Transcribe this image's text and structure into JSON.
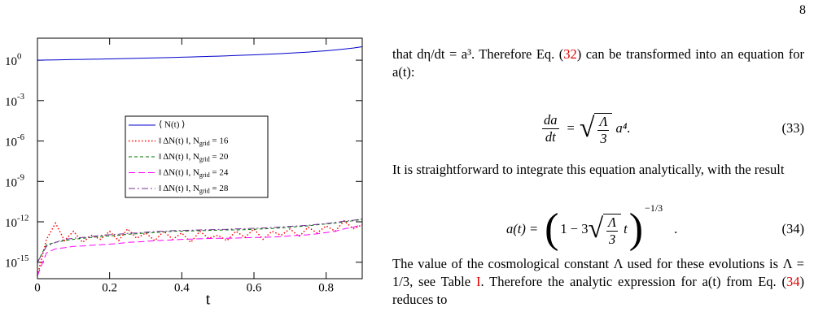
{
  "page_number": "8",
  "chart_data": {
    "type": "line",
    "x_label": "t",
    "x": [
      0,
      0.025,
      0.05,
      0.075,
      0.1,
      0.125,
      0.15,
      0.175,
      0.2,
      0.225,
      0.25,
      0.275,
      0.3,
      0.325,
      0.35,
      0.375,
      0.4,
      0.425,
      0.45,
      0.475,
      0.5,
      0.525,
      0.55,
      0.575,
      0.6,
      0.625,
      0.65,
      0.675,
      0.7,
      0.725,
      0.75,
      0.775,
      0.8,
      0.825,
      0.85,
      0.875,
      0.9
    ],
    "xlim": [
      0,
      0.9
    ],
    "xticks": [
      0,
      0.2,
      0.4,
      0.6,
      0.8
    ],
    "ylim": [
      6e-17,
      43
    ],
    "y_log": true,
    "yticks": [
      {
        "value": 1,
        "label": "10^0"
      },
      {
        "value": 0.001,
        "label": "10^-3"
      },
      {
        "value": 1e-06,
        "label": "10^-6"
      },
      {
        "value": 1e-09,
        "label": "10^-9"
      },
      {
        "value": 1e-12,
        "label": "10^-12"
      },
      {
        "value": 1e-15,
        "label": "10^-15"
      }
    ],
    "legend": "center",
    "series": [
      {
        "name": "⟨ N(t) ⟩",
        "color": "#0000cc",
        "dash": "none",
        "values": [
          1,
          1.026,
          1.053,
          1.081,
          1.111,
          1.143,
          1.176,
          1.212,
          1.25,
          1.29,
          1.333,
          1.379,
          1.429,
          1.481,
          1.538,
          1.6,
          1.667,
          1.739,
          1.818,
          1.905,
          2,
          2.105,
          2.222,
          2.353,
          2.5,
          2.667,
          2.857,
          3.077,
          3.333,
          3.636,
          4,
          4.444,
          5,
          5.714,
          6.667,
          8,
          10
        ]
      },
      {
        "name": "‖ ΔN(t) ‖,  N_grid = 16",
        "color": "#ff0000",
        "dash": "1.5,2.5",
        "values": [
          1e-16,
          5e-14,
          8e-13,
          4e-14,
          2e-13,
          3e-14,
          1e-13,
          5e-14,
          2e-13,
          4e-14,
          3e-13,
          6e-14,
          1.5e-13,
          4e-14,
          2e-13,
          5e-14,
          1.5e-13,
          3e-14,
          2e-13,
          6e-14,
          1e-13,
          4e-14,
          2e-13,
          7e-14,
          3e-13,
          5e-14,
          2e-13,
          1e-13,
          3e-13,
          8e-14,
          4e-13,
          1.5e-13,
          5e-13,
          2e-13,
          1.2e-12,
          3e-13,
          6e-13
        ]
      },
      {
        "name": "‖ ΔN(t) ‖,  N_grid = 20",
        "color": "#007700",
        "dash": "4,3",
        "values": [
          1e-15,
          2e-14,
          3e-14,
          4e-14,
          5e-14,
          6e-14,
          7e-14,
          8e-14,
          9e-14,
          1e-13,
          1.2e-13,
          1.3e-13,
          1.5e-13,
          1.6e-13,
          1.8e-13,
          2e-13,
          2e-13,
          2.1e-13,
          2.2e-13,
          2.3e-13,
          2.4e-13,
          2.5e-13,
          2.5e-13,
          2.6e-13,
          2.8e-13,
          3e-13,
          3.2e-13,
          3.5e-13,
          4e-13,
          4.5e-13,
          5e-13,
          6e-13,
          7e-13,
          8e-13,
          1e-12,
          1.2e-12,
          1.5e-12
        ]
      },
      {
        "name": "‖ ΔN(t) ‖,  N_grid = 24",
        "color": "#ff00ff",
        "dash": "8,4",
        "values": [
          1e-16,
          5e-15,
          1e-14,
          1.2e-14,
          1.5e-14,
          1.6e-14,
          1.8e-14,
          2e-14,
          2.2e-14,
          2.5e-14,
          3e-14,
          3.2e-14,
          3.5e-14,
          4e-14,
          4.2e-14,
          4.5e-14,
          5e-14,
          5.2e-14,
          5.5e-14,
          5.8e-14,
          6e-14,
          6e-14,
          6.2e-14,
          6.5e-14,
          7e-14,
          7e-14,
          7.5e-14,
          8e-14,
          9e-14,
          1e-13,
          1.1e-13,
          1.3e-13,
          1.6e-13,
          2e-13,
          3e-13,
          4e-13,
          6e-13
        ]
      },
      {
        "name": "‖ ΔN(t) ‖,  N_grid = 28",
        "color": "#7a2f9a",
        "dash": "8,3,2,3",
        "values": [
          1e-15,
          1.5e-14,
          3e-14,
          5e-14,
          6e-14,
          7e-14,
          8e-14,
          1e-13,
          1.1e-13,
          1.2e-13,
          1.4e-13,
          1.5e-13,
          1.7e-13,
          1.9e-13,
          2e-13,
          2.2e-13,
          2.3e-13,
          2.4e-13,
          2.5e-13,
          2.6e-13,
          2.7e-13,
          2.8e-13,
          3e-13,
          3.1e-13,
          3.3e-13,
          3.5e-13,
          3.8e-13,
          4.2e-13,
          4.6e-13,
          5e-13,
          5.5e-13,
          6.5e-13,
          7.5e-13,
          9e-13,
          1.1e-12,
          1.3e-12,
          1.6e-12
        ]
      }
    ]
  },
  "text": {
    "p1": [
      "that dη/dt = a³. Therefore Eq. (",
      {
        "text": "32",
        "color": "#e00000"
      },
      ") can be transformed into an equation for a(t):"
    ],
    "eq33": {
      "num": "da",
      "den": "dt",
      "op": "=",
      "rad_num": "Λ",
      "rad_den": "3",
      "tail": "a⁴.",
      "number": "(33)"
    },
    "p2": [
      "It is straightforward to integrate this equation analytically, with the result"
    ],
    "eq34": {
      "lhs": "a(t) =",
      "open": "(",
      "inner": "1 − 3",
      "rad_num": "Λ",
      "rad_den": "3",
      "tail": "t",
      "close": ")",
      "exponent": "−1/3",
      "end": ".",
      "number": "(34)"
    },
    "p3": [
      "The value of the cosmological constant Λ used for these evolutions is Λ = 1/3, see Table ",
      {
        "text": "I",
        "color": "#e00000"
      },
      ". Therefore the analytic expression for a(t) from Eq. (",
      {
        "text": "34",
        "color": "#e00000"
      },
      ") reduces to"
    ]
  }
}
